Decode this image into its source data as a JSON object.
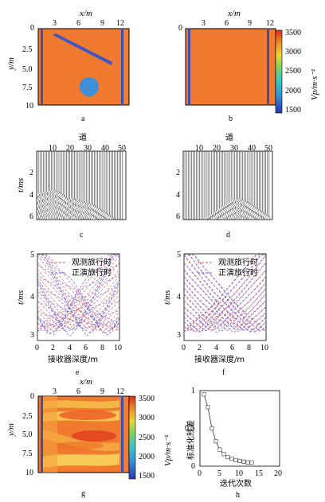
{
  "colors": {
    "background_model": "#ef7a30",
    "anomaly": "#3d8fd8",
    "well": "#3d4fa8",
    "observed_curve": "#e05a5a",
    "forward_curve": "#5a5ad0",
    "residual_marker": "#555555"
  },
  "panels": {
    "a": {
      "caption": "a",
      "xlabel": "x/m",
      "ylabel": "y/m",
      "xticks": [
        "3",
        "6",
        "9",
        "12"
      ],
      "yticks": [
        "0",
        "2.5",
        "5.0",
        "7.5",
        "10"
      ]
    },
    "b": {
      "caption": "b",
      "xlabel": "x/m",
      "xticks": [
        "3",
        "6",
        "9",
        "12"
      ],
      "yticks": [
        "0"
      ]
    },
    "colorbar_top": {
      "label": "Vp/m·s⁻¹",
      "ticks": [
        "3500",
        "3000",
        "2500",
        "2000",
        "1500"
      ],
      "range": [
        1500,
        3500
      ]
    },
    "c": {
      "caption": "c",
      "xlabel": "道",
      "ylabel": "t/ms",
      "xticks": [
        "10",
        "20",
        "30",
        "40",
        "50"
      ],
      "yticks": [
        "2",
        "4",
        "6"
      ]
    },
    "d": {
      "caption": "d",
      "xlabel": "道",
      "xticks": [
        "10",
        "20",
        "30",
        "40",
        "50"
      ],
      "yticks": [
        "2",
        "4",
        "6"
      ]
    },
    "e": {
      "caption": "e",
      "xlabel": "接收器深度/m",
      "ylabel": "t/ms",
      "xticks": [
        "0",
        "2",
        "4",
        "6",
        "8",
        "10"
      ],
      "yticks": [
        "3",
        "4",
        "5"
      ],
      "legend": [
        "观测旅行时",
        "正演旅行时"
      ]
    },
    "f": {
      "caption": "f",
      "xlabel": "接收器深度/m",
      "xticks": [
        "0",
        "2",
        "4",
        "6",
        "8",
        "10"
      ],
      "yticks": [
        "3",
        "4",
        "5"
      ],
      "legend": [
        "观测旅行时",
        "正演旅行时"
      ]
    },
    "g": {
      "caption": "g",
      "xlabel": "x/m",
      "ylabel": "y/m",
      "xticks": [
        "3",
        "6",
        "9",
        "12"
      ],
      "yticks": [
        "0",
        "2.5",
        "5.0",
        "7.5",
        "10"
      ]
    },
    "colorbar_bottom": {
      "label": "Vp/m·s⁻¹",
      "ticks": [
        "3500",
        "3000",
        "2500",
        "2000",
        "1500"
      ],
      "range": [
        1500,
        3500
      ]
    },
    "h": {
      "caption": "h",
      "xlabel": "迭代次数",
      "ylabel": "标准化残差",
      "xticks": [
        "0",
        "5",
        "10",
        "15",
        "20"
      ],
      "yticks": [
        "0",
        "0.5",
        "1"
      ]
    }
  },
  "chart_data": [
    {
      "type": "heatmap",
      "panel": "a",
      "xlim": [
        0,
        13
      ],
      "ylim": [
        0,
        10
      ],
      "shapes": {
        "left_well_x": 0.4,
        "right_well_x": 12.0,
        "inclined_bar": {
          "from": [
            2.0,
            0.8
          ],
          "to": [
            10.0,
            4.5
          ]
        },
        "circle": {
          "center": [
            7.2,
            8.2
          ],
          "radius": 1.3
        }
      }
    },
    {
      "type": "heatmap",
      "panel": "b",
      "xlim": [
        0,
        13
      ],
      "ylim": [
        0,
        10
      ],
      "shapes": {
        "left_well_x": 0.4,
        "right_well_x": 12.0
      }
    },
    {
      "type": "line",
      "panel": "c",
      "traces": 52,
      "xlim": [
        0,
        54
      ],
      "ylim": [
        0,
        6.3
      ],
      "first_break_ms": [
        3.9,
        3.8,
        3.8,
        3.7,
        3.7,
        3.7,
        3.6,
        3.6,
        3.6,
        3.6,
        3.6,
        3.7,
        3.7,
        3.8,
        3.9,
        4.0,
        4.2,
        4.3,
        4.4,
        4.4,
        4.3,
        4.3,
        4.4,
        4.5,
        4.5,
        4.6,
        4.6,
        4.6,
        4.7,
        4.7,
        4.7,
        4.8,
        4.8,
        4.9,
        5.0,
        5.1,
        5.2,
        5.3,
        5.4,
        5.5,
        5.6,
        5.7,
        5.8,
        5.9,
        6.0,
        6.1,
        6.2,
        6.3,
        6.4,
        6.5,
        6.6,
        6.7
      ]
    },
    {
      "type": "line",
      "panel": "d",
      "traces": 52,
      "xlim": [
        0,
        54
      ],
      "ylim": [
        0,
        6.3
      ],
      "first_break_ms": [
        7.0,
        7.0,
        7.0,
        7.0,
        7.0,
        6.9,
        6.8,
        6.7,
        6.6,
        6.5,
        6.4,
        6.3,
        6.2,
        6.1,
        6.0,
        5.9,
        5.8,
        5.7,
        5.6,
        5.5,
        5.4,
        5.3,
        5.2,
        5.1,
        5.0,
        4.9,
        4.8,
        4.7,
        4.6,
        4.5,
        4.5,
        4.4,
        4.4,
        4.4,
        4.4,
        4.5,
        4.5,
        4.6,
        4.7,
        4.8,
        4.9,
        5.0,
        5.1,
        5.2,
        5.3,
        5.4,
        5.5,
        5.6,
        5.7,
        5.8,
        5.9,
        6.0
      ]
    },
    {
      "type": "line",
      "panel": "e",
      "xlim": [
        0,
        10
      ],
      "ylim": [
        3,
        5
      ],
      "series_count": 16
    },
    {
      "type": "line",
      "panel": "f",
      "xlim": [
        0,
        10
      ],
      "ylim": [
        3,
        5
      ],
      "series_count": 16
    },
    {
      "type": "heatmap",
      "panel": "g",
      "xlim": [
        0,
        13
      ],
      "ylim": [
        0,
        10
      ]
    },
    {
      "type": "line",
      "panel": "h",
      "xlim": [
        0,
        20
      ],
      "ylim": [
        0,
        1
      ],
      "x": [
        1,
        2,
        3,
        4,
        5,
        6,
        7,
        8,
        9,
        10,
        11,
        12,
        13
      ],
      "values": [
        0.95,
        0.78,
        0.5,
        0.33,
        0.22,
        0.16,
        0.12,
        0.1,
        0.08,
        0.07,
        0.06,
        0.05,
        0.05
      ]
    }
  ]
}
